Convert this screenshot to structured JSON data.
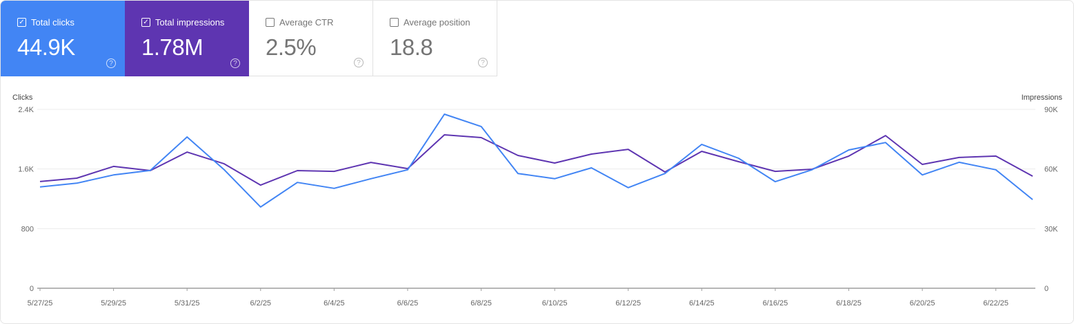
{
  "metrics": [
    {
      "label": "Total clicks",
      "value": "44.9K",
      "checked": true,
      "color": "#4285f4"
    },
    {
      "label": "Total impressions",
      "value": "1.78M",
      "checked": true,
      "color": "#5e35b1"
    },
    {
      "label": "Average CTR",
      "value": "2.5%",
      "checked": false
    },
    {
      "label": "Average position",
      "value": "18.8",
      "checked": false
    }
  ],
  "help_icon": "?",
  "check_icon": "✓",
  "chart_data": {
    "type": "line",
    "left_axis_label": "Clicks",
    "right_axis_label": "Impressions",
    "left_ylim": [
      0,
      2400
    ],
    "right_ylim": [
      0,
      90000
    ],
    "left_ticks": [
      "0",
      "800",
      "1.6K",
      "2.4K"
    ],
    "right_ticks": [
      "0",
      "30K",
      "60K",
      "90K"
    ],
    "grid": true,
    "x": [
      "5/27/25",
      "5/28/25",
      "5/29/25",
      "5/30/25",
      "5/31/25",
      "6/1/25",
      "6/2/25",
      "6/3/25",
      "6/4/25",
      "6/5/25",
      "6/6/25",
      "6/7/25",
      "6/8/25",
      "6/9/25",
      "6/10/25",
      "6/11/25",
      "6/12/25",
      "6/13/25",
      "6/14/25",
      "6/15/25",
      "6/16/25",
      "6/17/25",
      "6/18/25",
      "6/19/25",
      "6/20/25",
      "6/21/25",
      "6/22/25",
      "6/23/25"
    ],
    "x_tick_labels": [
      "5/27/25",
      "5/29/25",
      "5/31/25",
      "6/2/25",
      "6/4/25",
      "6/6/25",
      "6/8/25",
      "6/10/25",
      "6/12/25",
      "6/14/25",
      "6/16/25",
      "6/18/25",
      "6/20/25",
      "6/22/25"
    ],
    "series": [
      {
        "name": "Clicks",
        "axis": "left",
        "color": "#4285f4",
        "values": [
          1360,
          1410,
          1520,
          1580,
          2030,
          1595,
          1090,
          1420,
          1340,
          1470,
          1590,
          2335,
          2170,
          1540,
          1470,
          1615,
          1350,
          1540,
          1930,
          1745,
          1430,
          1590,
          1855,
          1955,
          1520,
          1690,
          1590,
          1190
        ]
      },
      {
        "name": "Impressions",
        "axis": "right",
        "color": "#5e35b1",
        "values": [
          53700,
          55400,
          61300,
          59200,
          68500,
          62700,
          51900,
          59200,
          58800,
          63300,
          60200,
          77200,
          75800,
          66800,
          63000,
          67500,
          69900,
          58500,
          68900,
          63700,
          58800,
          59900,
          66500,
          76800,
          62300,
          65800,
          66500,
          56400
        ]
      }
    ]
  }
}
